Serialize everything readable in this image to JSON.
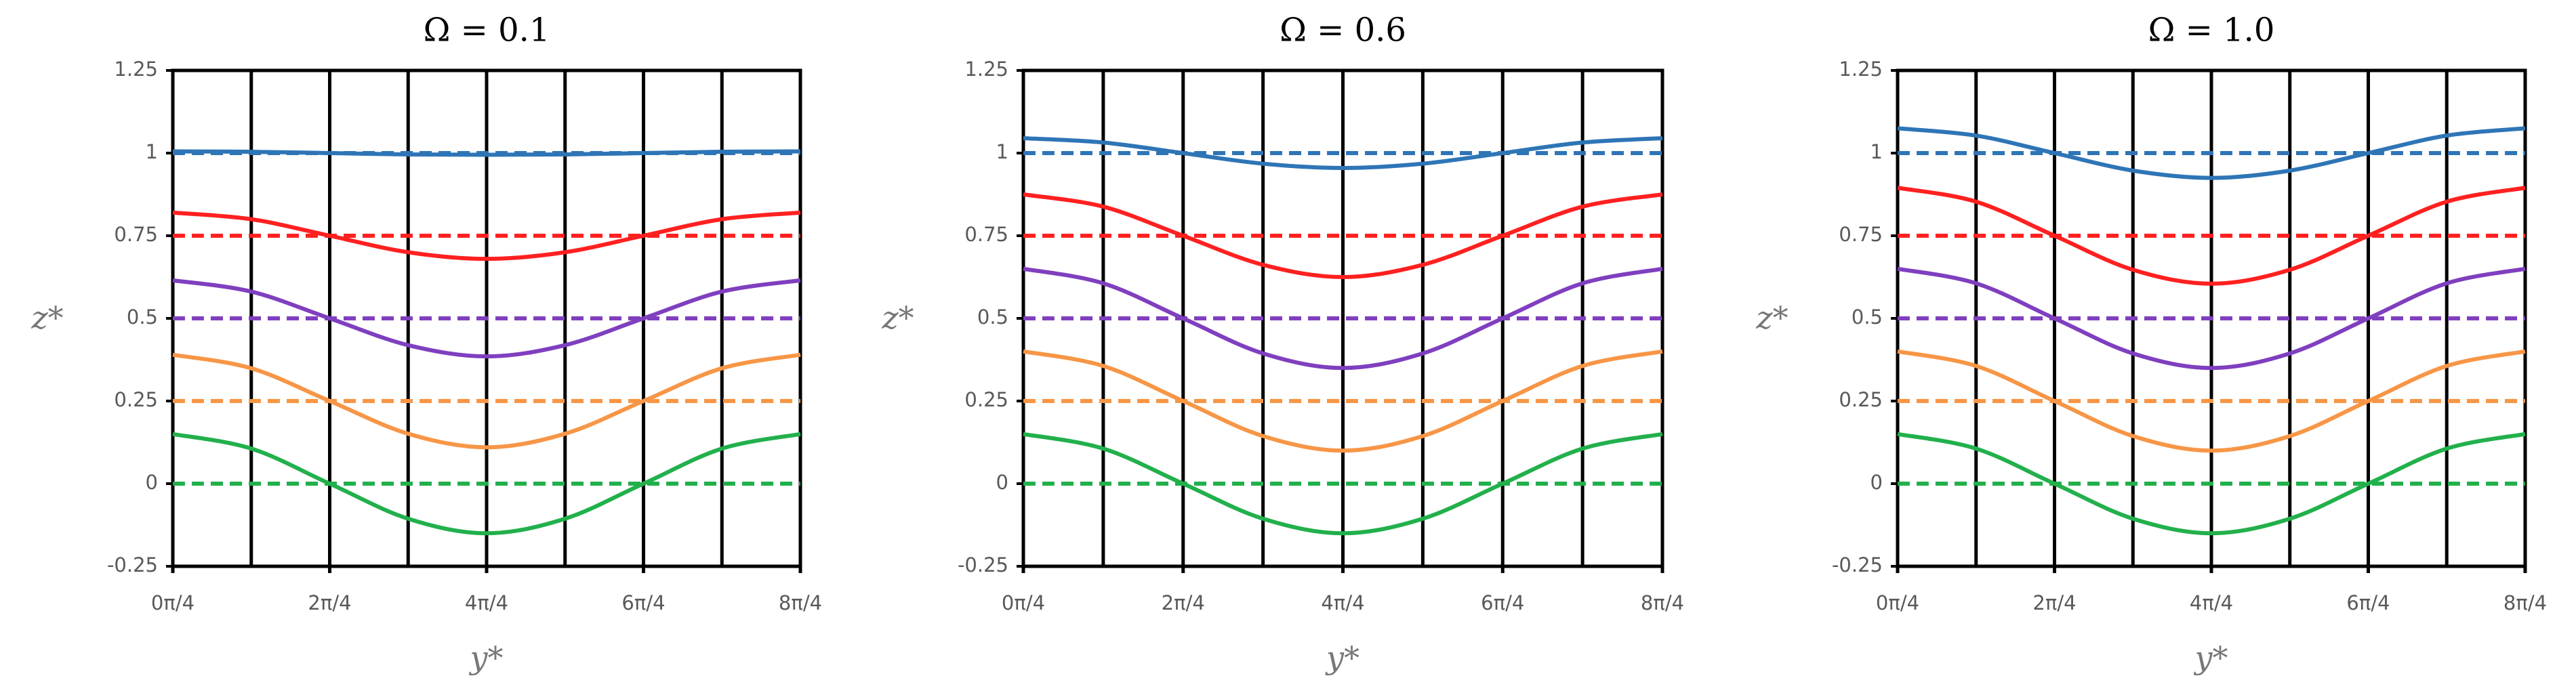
{
  "chart_data": [
    {
      "type": "line",
      "title": "Ω = 0.1",
      "xlabel": "y*",
      "ylabel": "z*",
      "x": [
        0,
        1,
        2,
        3,
        4,
        5,
        6,
        7,
        8
      ],
      "xlim": [
        0,
        8
      ],
      "ylim": [
        -0.25,
        1.25
      ],
      "xticks": [
        {
          "value": 0,
          "label": "0π/4"
        },
        {
          "value": 2,
          "label": "2π/4"
        },
        {
          "value": 4,
          "label": "4π/4"
        },
        {
          "value": 6,
          "label": "6π/4"
        },
        {
          "value": 8,
          "label": "8π/4"
        }
      ],
      "xminor": [
        1,
        3,
        5,
        7
      ],
      "yticks": [
        -0.25,
        0,
        0.25,
        0.5,
        0.75,
        1,
        1.25
      ],
      "series": [
        {
          "color": "#2e75b6",
          "dash": false,
          "values": [
            1.005,
            1.004,
            1,
            0.996,
            0.995,
            0.996,
            1,
            1.004,
            1.005
          ]
        },
        {
          "color": "#ff2020",
          "dash": false,
          "values": [
            0.82,
            0.8,
            0.75,
            0.7,
            0.68,
            0.7,
            0.75,
            0.8,
            0.82
          ]
        },
        {
          "color": "#7f3fbf",
          "dash": false,
          "values": [
            0.615,
            0.581,
            0.5,
            0.419,
            0.385,
            0.419,
            0.5,
            0.581,
            0.615
          ]
        },
        {
          "color": "#f79646",
          "dash": false,
          "values": [
            0.39,
            0.349,
            0.25,
            0.151,
            0.11,
            0.151,
            0.25,
            0.349,
            0.39
          ]
        },
        {
          "color": "#22b04c",
          "dash": false,
          "values": [
            0.15,
            0.106,
            0,
            -0.106,
            -0.15,
            -0.106,
            0,
            0.106,
            0.15
          ]
        },
        {
          "color": "#2e75b6",
          "dash": true,
          "values": [
            1,
            1,
            1,
            1,
            1,
            1,
            1,
            1,
            1
          ]
        },
        {
          "color": "#ff2020",
          "dash": true,
          "values": [
            0.75,
            0.75,
            0.75,
            0.75,
            0.75,
            0.75,
            0.75,
            0.75,
            0.75
          ]
        },
        {
          "color": "#7f3fbf",
          "dash": true,
          "values": [
            0.5,
            0.5,
            0.5,
            0.5,
            0.5,
            0.5,
            0.5,
            0.5,
            0.5
          ]
        },
        {
          "color": "#f79646",
          "dash": true,
          "values": [
            0.25,
            0.25,
            0.25,
            0.25,
            0.25,
            0.25,
            0.25,
            0.25,
            0.25
          ]
        },
        {
          "color": "#22b04c",
          "dash": true,
          "values": [
            0,
            0,
            0,
            0,
            0,
            0,
            0,
            0,
            0
          ]
        }
      ]
    },
    {
      "type": "line",
      "title": "Ω = 0.6",
      "xlabel": "y*",
      "ylabel": "z*",
      "x": [
        0,
        1,
        2,
        3,
        4,
        5,
        6,
        7,
        8
      ],
      "xlim": [
        0,
        8
      ],
      "ylim": [
        -0.25,
        1.25
      ],
      "xticks": [
        {
          "value": 0,
          "label": "0π/4"
        },
        {
          "value": 2,
          "label": "2π/4"
        },
        {
          "value": 4,
          "label": "4π/4"
        },
        {
          "value": 6,
          "label": "6π/4"
        },
        {
          "value": 8,
          "label": "8π/4"
        }
      ],
      "xminor": [
        1,
        3,
        5,
        7
      ],
      "yticks": [
        -0.25,
        0,
        0.25,
        0.5,
        0.75,
        1,
        1.25
      ],
      "series": [
        {
          "color": "#2e75b6",
          "dash": false,
          "values": [
            1.045,
            1.032,
            1,
            0.968,
            0.955,
            0.968,
            1,
            1.032,
            1.045
          ]
        },
        {
          "color": "#ff2020",
          "dash": false,
          "values": [
            0.875,
            0.838,
            0.75,
            0.662,
            0.625,
            0.662,
            0.75,
            0.838,
            0.875
          ]
        },
        {
          "color": "#7f3fbf",
          "dash": false,
          "values": [
            0.65,
            0.606,
            0.5,
            0.394,
            0.35,
            0.394,
            0.5,
            0.606,
            0.65
          ]
        },
        {
          "color": "#f79646",
          "dash": false,
          "values": [
            0.4,
            0.356,
            0.25,
            0.144,
            0.1,
            0.144,
            0.25,
            0.356,
            0.4
          ]
        },
        {
          "color": "#22b04c",
          "dash": false,
          "values": [
            0.15,
            0.106,
            0,
            -0.106,
            -0.15,
            -0.106,
            0,
            0.106,
            0.15
          ]
        },
        {
          "color": "#2e75b6",
          "dash": true,
          "values": [
            1,
            1,
            1,
            1,
            1,
            1,
            1,
            1,
            1
          ]
        },
        {
          "color": "#ff2020",
          "dash": true,
          "values": [
            0.75,
            0.75,
            0.75,
            0.75,
            0.75,
            0.75,
            0.75,
            0.75,
            0.75
          ]
        },
        {
          "color": "#7f3fbf",
          "dash": true,
          "values": [
            0.5,
            0.5,
            0.5,
            0.5,
            0.5,
            0.5,
            0.5,
            0.5,
            0.5
          ]
        },
        {
          "color": "#f79646",
          "dash": true,
          "values": [
            0.25,
            0.25,
            0.25,
            0.25,
            0.25,
            0.25,
            0.25,
            0.25,
            0.25
          ]
        },
        {
          "color": "#22b04c",
          "dash": true,
          "values": [
            0,
            0,
            0,
            0,
            0,
            0,
            0,
            0,
            0
          ]
        }
      ]
    },
    {
      "type": "line",
      "title": "Ω = 1.0",
      "xlabel": "y*",
      "ylabel": "z*",
      "x": [
        0,
        1,
        2,
        3,
        4,
        5,
        6,
        7,
        8
      ],
      "xlim": [
        0,
        8
      ],
      "ylim": [
        -0.25,
        1.25
      ],
      "xticks": [
        {
          "value": 0,
          "label": "0π/4"
        },
        {
          "value": 2,
          "label": "2π/4"
        },
        {
          "value": 4,
          "label": "4π/4"
        },
        {
          "value": 6,
          "label": "6π/4"
        },
        {
          "value": 8,
          "label": "8π/4"
        }
      ],
      "xminor": [
        1,
        3,
        5,
        7
      ],
      "yticks": [
        -0.25,
        0,
        0.25,
        0.5,
        0.75,
        1,
        1.25
      ],
      "series": [
        {
          "color": "#2e75b6",
          "dash": false,
          "values": [
            1.075,
            1.053,
            1,
            0.947,
            0.925,
            0.947,
            1,
            1.053,
            1.075
          ]
        },
        {
          "color": "#ff2020",
          "dash": false,
          "values": [
            0.895,
            0.853,
            0.75,
            0.647,
            0.605,
            0.647,
            0.75,
            0.853,
            0.895
          ]
        },
        {
          "color": "#7f3fbf",
          "dash": false,
          "values": [
            0.65,
            0.606,
            0.5,
            0.394,
            0.35,
            0.394,
            0.5,
            0.606,
            0.65
          ]
        },
        {
          "color": "#f79646",
          "dash": false,
          "values": [
            0.4,
            0.356,
            0.25,
            0.144,
            0.1,
            0.144,
            0.25,
            0.356,
            0.4
          ]
        },
        {
          "color": "#22b04c",
          "dash": false,
          "values": [
            0.15,
            0.106,
            0,
            -0.106,
            -0.15,
            -0.106,
            0,
            0.106,
            0.15
          ]
        },
        {
          "color": "#2e75b6",
          "dash": true,
          "values": [
            1,
            1,
            1,
            1,
            1,
            1,
            1,
            1,
            1
          ]
        },
        {
          "color": "#ff2020",
          "dash": true,
          "values": [
            0.75,
            0.75,
            0.75,
            0.75,
            0.75,
            0.75,
            0.75,
            0.75,
            0.75
          ]
        },
        {
          "color": "#7f3fbf",
          "dash": true,
          "values": [
            0.5,
            0.5,
            0.5,
            0.5,
            0.5,
            0.5,
            0.5,
            0.5,
            0.5
          ]
        },
        {
          "color": "#f79646",
          "dash": true,
          "values": [
            0.25,
            0.25,
            0.25,
            0.25,
            0.25,
            0.25,
            0.25,
            0.25,
            0.25
          ]
        },
        {
          "color": "#22b04c",
          "dash": true,
          "values": [
            0,
            0,
            0,
            0,
            0,
            0,
            0,
            0,
            0
          ]
        }
      ]
    }
  ]
}
